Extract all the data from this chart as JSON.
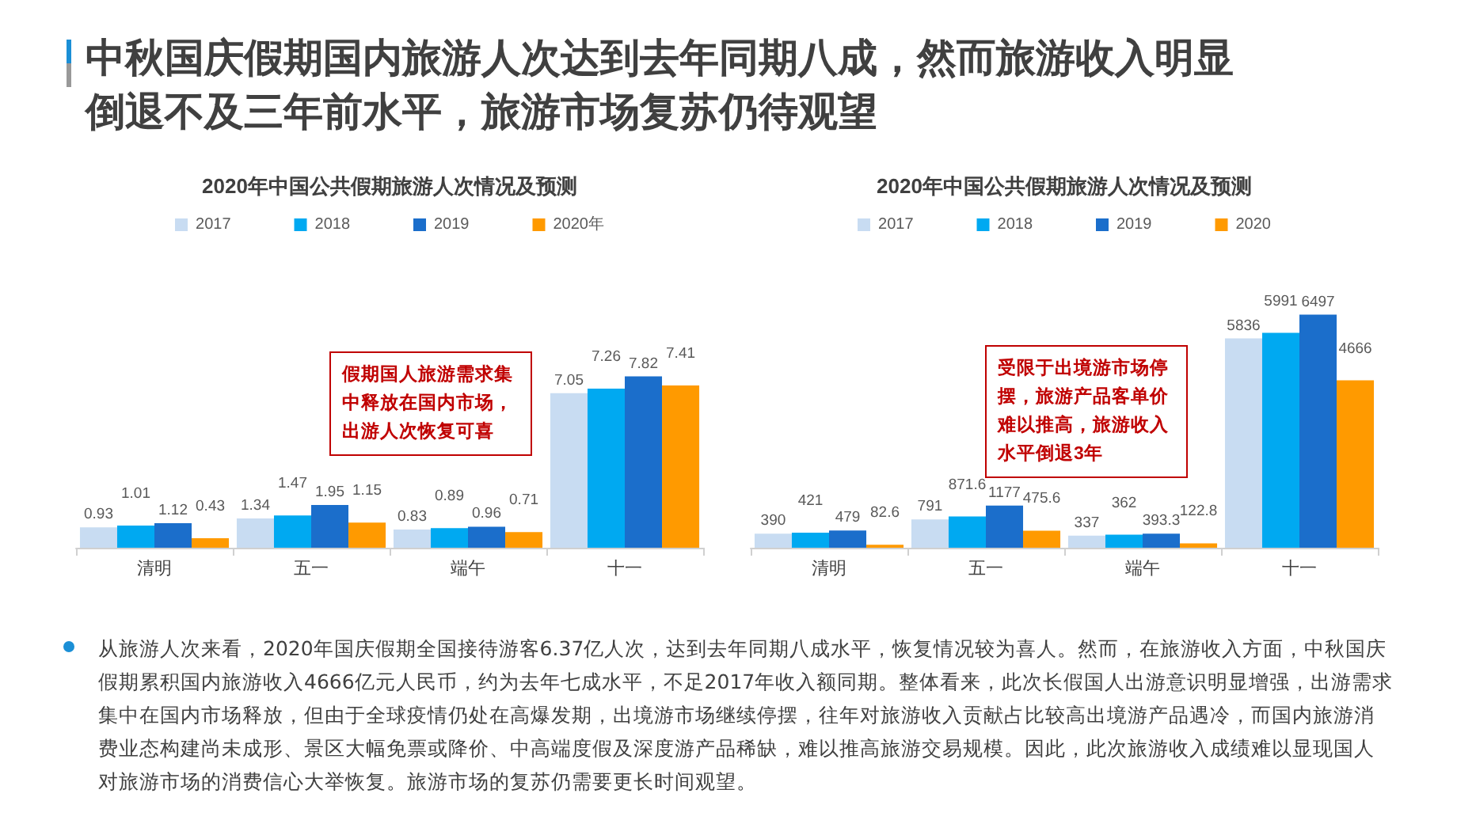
{
  "chart_data": [
    {
      "type": "bar",
      "title": "2020年中国公共假期旅游人次情况及预测",
      "categories": [
        "清明",
        "五一",
        "端午",
        "十一"
      ],
      "series": [
        {
          "name": "2017",
          "color": "#c8dcf2",
          "values": [
            0.93,
            1.34,
            0.83,
            7.05
          ]
        },
        {
          "name": "2018",
          "color": "#00a9f1",
          "values": [
            1.01,
            1.47,
            0.89,
            7.26
          ]
        },
        {
          "name": "2019",
          "color": "#1b6ecb",
          "values": [
            1.12,
            1.95,
            0.96,
            7.82
          ]
        },
        {
          "name": "2020年",
          "color": "#ff9a00",
          "values": [
            0.43,
            1.15,
            0.71,
            7.41
          ]
        }
      ],
      "data_labels": true,
      "legend": "top",
      "annotations": [
        "假期国人旅游需求集中释放在国内市场，出游人次恢复可喜"
      ]
    },
    {
      "type": "bar",
      "title": "2020年中国公共假期旅游人次情况及预测",
      "categories": [
        "清明",
        "五一",
        "端午",
        "十一"
      ],
      "series": [
        {
          "name": "2017",
          "color": "#c8dcf2",
          "values": [
            390,
            791,
            337,
            5836
          ]
        },
        {
          "name": "2018",
          "color": "#00a9f1",
          "values": [
            421,
            871.6,
            362,
            5991
          ]
        },
        {
          "name": "2019",
          "color": "#1b6ecb",
          "values": [
            479,
            1177,
            393.3,
            6497
          ]
        },
        {
          "name": "2020",
          "color": "#ff9a00",
          "values": [
            82.6,
            475.6,
            122.8,
            4666
          ]
        }
      ],
      "data_labels": true,
      "legend": "top",
      "annotations": [
        "受限于出境游市场停摆，旅游产品客单价难以推高，旅游收入水平倒退3年"
      ]
    },
    {
      "type": "other",
      "title": "中秋国庆假期国内旅游人次达到去年同期八成，然而旅游收入明显倒退不及三年前水平，旅游市场复苏仍待观望",
      "annotations": [
        "从旅游人次来看，2020年国庆假期全国接待游客6.37亿人次，达到去年同期八成水平，恢复情况较为喜人。然而，在旅游收入方面，中秋国庆假期累积国内旅游收入4666亿元人民币，约为去年七成水平，不足2017年收入额同期。整体看来，此次长假国人出游意识明显增强，出游需求集中在国内市场释放，但由于全球疫情仍处在高爆发期，出境游市场继续停摆，往年对旅游收入贡献占比较高出境游产品遇冷，而国内旅游消费业态构建尚未成形、景区大幅免票或降价、中高端度假及深度游产品稀缺，难以推高旅游交易规模。因此，此次旅游收入成绩难以显现国人对旅游市场的消费信心大举恢复。旅游市场的复苏仍需要更长时间观望。"
      ]
    }
  ]
}
